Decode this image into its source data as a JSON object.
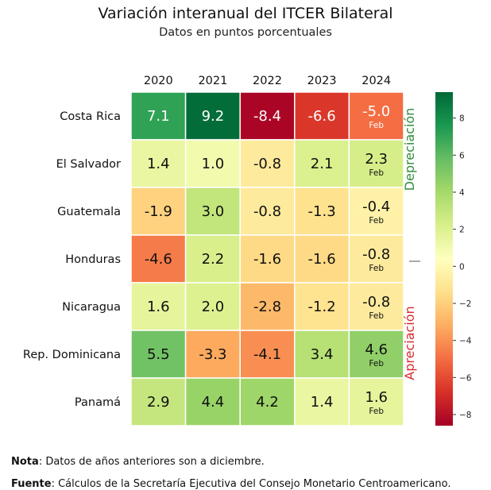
{
  "chart_data": {
    "type": "heatmap",
    "title": "Variación interanual del ITCER Bilateral",
    "subtitle": "Datos en puntos porcentuales",
    "columns": [
      "2020",
      "2021",
      "2022",
      "2023",
      "2024"
    ],
    "rows": [
      "Costa Rica",
      "El Salvador",
      "Guatemala",
      "Honduras",
      "Nicaragua",
      "Rep. Dominicana",
      "Panamá"
    ],
    "values": [
      [
        7.1,
        9.2,
        -8.4,
        -6.6,
        -5.0
      ],
      [
        1.4,
        1.0,
        -0.8,
        2.1,
        2.3
      ],
      [
        -1.9,
        3.0,
        -0.8,
        -1.3,
        -0.4
      ],
      [
        -4.6,
        2.2,
        -1.6,
        -1.6,
        -0.8
      ],
      [
        1.6,
        2.0,
        -2.8,
        -1.2,
        -0.8
      ],
      [
        5.5,
        -3.3,
        -4.1,
        3.4,
        4.6
      ],
      [
        2.9,
        4.4,
        4.2,
        1.4,
        1.6
      ]
    ],
    "value_labels": [
      [
        "7.1",
        "9.2",
        "-8.4",
        "-6.6",
        "-5.0"
      ],
      [
        "1.4",
        "1.0",
        "-0.8",
        "2.1",
        "2.3"
      ],
      [
        "-1.9",
        "3.0",
        "-0.8",
        "-1.3",
        "-0.4"
      ],
      [
        "-4.6",
        "2.2",
        "-1.6",
        "-1.6",
        "-0.8"
      ],
      [
        "1.6",
        "2.0",
        "-2.8",
        "-1.2",
        "-0.8"
      ],
      [
        "5.5",
        "-3.3",
        "-4.1",
        "3.4",
        "4.6"
      ],
      [
        "2.9",
        "4.4",
        "4.2",
        "1.4",
        "1.6"
      ]
    ],
    "cell_sublabel": "Feb",
    "sublabel_column": 4,
    "side_label_top": "Depreciación",
    "side_label_bottom": "Apreciación",
    "side_label_top_color": "#2e8b3a",
    "side_label_bottom_color": "#d92b2b",
    "colorbar": {
      "range": [
        -8.6,
        9.4
      ],
      "ticks": [
        8,
        6,
        4,
        2,
        0,
        -2,
        -4,
        -6,
        -8
      ],
      "tick_labels": [
        "8",
        "6",
        "4",
        "2",
        "0",
        "−2",
        "−4",
        "−6",
        "−8"
      ],
      "colormap": "RdYlGn"
    }
  },
  "footer": {
    "note_label": "Nota",
    "note_text": ": Datos de años anteriores son a diciembre.",
    "source_label": "Fuente",
    "source_text": ": Cálculos de la Secretaría Ejecutiva del Consejo Monetario Centroamericano."
  }
}
